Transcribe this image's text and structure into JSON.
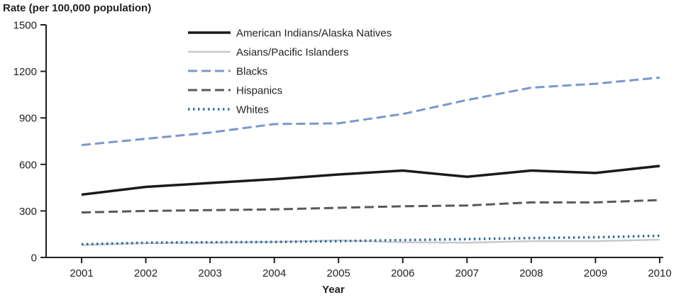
{
  "title": "Rate (per 100,000 population)",
  "xlabel": "Year",
  "chart_data": {
    "type": "line",
    "x": [
      2001,
      2002,
      2003,
      2004,
      2005,
      2006,
      2007,
      2008,
      2009,
      2010
    ],
    "series": [
      {
        "name": "American Indians/Alaska Natives",
        "color": "#1a1a1a",
        "dash": "solid",
        "width": 3.5,
        "values": [
          405,
          455,
          480,
          505,
          535,
          560,
          520,
          560,
          545,
          590
        ]
      },
      {
        "name": "Asians/Pacific Islanders",
        "color": "#c7c9cb",
        "dash": "solid",
        "width": 2.5,
        "values": [
          80,
          92,
          95,
          100,
          110,
          98,
          95,
          105,
          105,
          115
        ]
      },
      {
        "name": "Blacks",
        "color": "#7b97cc",
        "dash": "dashed",
        "width": 3,
        "values": [
          725,
          765,
          805,
          860,
          865,
          925,
          1015,
          1095,
          1120,
          1160
        ]
      },
      {
        "name": "Hispanics",
        "color": "#58595b",
        "dash": "dashed",
        "width": 3,
        "values": [
          290,
          300,
          305,
          310,
          320,
          330,
          335,
          355,
          355,
          370
        ]
      },
      {
        "name": "Whites",
        "color": "#2e6da4",
        "dash": "dotted",
        "width": 3.5,
        "values": [
          85,
          95,
          98,
          100,
          105,
          112,
          118,
          125,
          130,
          140
        ]
      }
    ],
    "ylim": [
      0,
      1500
    ],
    "yticks": [
      0,
      300,
      600,
      900,
      1200,
      1500
    ],
    "grid": false,
    "legend_position": "top-left-inside"
  }
}
